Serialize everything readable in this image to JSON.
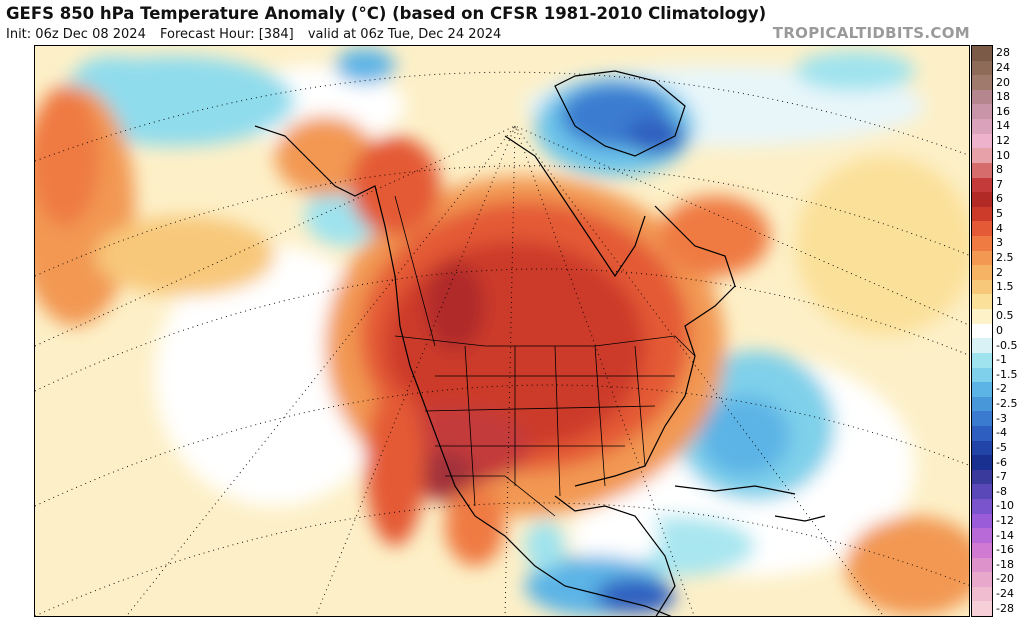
{
  "header": {
    "title": "GEFS 850 hPa Temperature Anomaly (°C) (based on CFSR 1981-2010 Climatology)",
    "init": "Init: 06z Dec 08 2024",
    "forecast_hour": "Forecast Hour: [384]",
    "valid": "valid at 06z Tue, Dec 24 2024",
    "brand": "TROPICALTIDBITS.COM"
  },
  "map": {
    "region": "North America",
    "icons": [
      "coastline-lines",
      "graticule-lines",
      "state-border-lines"
    ]
  },
  "colorbar": {
    "levels": [
      "28",
      "24",
      "20",
      "18",
      "16",
      "14",
      "12",
      "10",
      "8",
      "7",
      "6",
      "5",
      "4",
      "3",
      "2.5",
      "2",
      "1.5",
      "1",
      "0.5",
      "0",
      "-0.5",
      "-1",
      "-1.5",
      "-2",
      "-2.5",
      "-3",
      "-4",
      "-5",
      "-6",
      "-7",
      "-8",
      "-10",
      "-12",
      "-14",
      "-16",
      "-18",
      "-20",
      "-24",
      "-28"
    ],
    "colors": [
      "#7b5a48",
      "#8e6a58",
      "#a07a6c",
      "#b5868e",
      "#c894a8",
      "#dba2bc",
      "#eeb2cc",
      "#e7a1a8",
      "#d66c6c",
      "#c43a3a",
      "#b22a26",
      "#cc3a2a",
      "#e45a36",
      "#ef7a42",
      "#f29852",
      "#f6b364",
      "#f8c87a",
      "#fbe09a",
      "#fdf2c8",
      "#ffffff",
      "#d8f2f6",
      "#9fe3ee",
      "#7fd0ea",
      "#5cb4e6",
      "#4897d8",
      "#3a7bd0",
      "#2e5fc0",
      "#2244a8",
      "#1a3090",
      "#3a3a9c",
      "#5a48b8",
      "#7a54cc",
      "#9a5cd8",
      "#b86ad8",
      "#d07ad4",
      "#de92cc",
      "#e8a8cc",
      "#f0bcd0",
      "#f6cfd8"
    ]
  }
}
